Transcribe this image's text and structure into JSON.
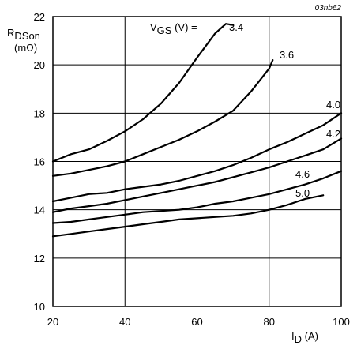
{
  "chart_data": {
    "type": "line",
    "ref_code": "03nb62",
    "ylabel_main": "R",
    "ylabel_sub": "DSon",
    "ylabel_unit": "(mΩ)",
    "xlabel_main": "I",
    "xlabel_sub": "D",
    "xlabel_unit": " (A)",
    "legend_prefix": "V",
    "legend_prefix_sub": "GS",
    "legend_prefix_rest": " (V) = ",
    "xlim": [
      20,
      100
    ],
    "ylim": [
      10,
      22
    ],
    "xticks": [
      "20",
      "40",
      "60",
      "80",
      "100"
    ],
    "yticks": [
      "10",
      "12",
      "14",
      "16",
      "18",
      "20",
      "22"
    ],
    "series": [
      {
        "name": "3.4",
        "x": [
          20,
          25,
          30,
          35,
          40,
          45,
          50,
          55,
          60,
          62,
          65,
          68,
          70
        ],
        "y": [
          16.0,
          16.3,
          16.5,
          16.85,
          17.25,
          17.75,
          18.4,
          19.25,
          20.3,
          20.7,
          21.3,
          21.7,
          21.65
        ]
      },
      {
        "name": "3.6",
        "x": [
          20,
          25,
          30,
          35,
          40,
          45,
          50,
          55,
          60,
          65,
          70,
          75,
          80,
          81
        ],
        "y": [
          15.4,
          15.5,
          15.65,
          15.8,
          16.0,
          16.3,
          16.6,
          16.9,
          17.25,
          17.65,
          18.1,
          18.9,
          19.85,
          20.2
        ]
      },
      {
        "name": "4.0",
        "x": [
          20,
          25,
          30,
          35,
          40,
          45,
          50,
          55,
          60,
          65,
          70,
          75,
          80,
          85,
          90,
          95,
          100
        ],
        "y": [
          14.35,
          14.5,
          14.65,
          14.7,
          14.85,
          14.95,
          15.05,
          15.2,
          15.4,
          15.6,
          15.85,
          16.15,
          16.5,
          16.8,
          17.15,
          17.5,
          18.0
        ]
      },
      {
        "name": "4.2",
        "x": [
          20,
          25,
          30,
          35,
          40,
          45,
          50,
          55,
          60,
          65,
          70,
          75,
          80,
          85,
          90,
          95,
          100
        ],
        "y": [
          13.9,
          14.05,
          14.15,
          14.25,
          14.4,
          14.55,
          14.7,
          14.85,
          15.0,
          15.15,
          15.35,
          15.55,
          15.75,
          16.0,
          16.25,
          16.5,
          16.95
        ]
      },
      {
        "name": "4.6",
        "x": [
          20,
          25,
          30,
          35,
          40,
          45,
          50,
          55,
          60,
          65,
          70,
          75,
          80,
          85,
          90,
          95,
          100
        ],
        "y": [
          13.45,
          13.5,
          13.6,
          13.7,
          13.8,
          13.9,
          13.95,
          14.0,
          14.1,
          14.25,
          14.35,
          14.5,
          14.65,
          14.85,
          15.05,
          15.3,
          15.6
        ]
      },
      {
        "name": "5.0",
        "x": [
          20,
          25,
          30,
          35,
          40,
          45,
          50,
          55,
          60,
          65,
          70,
          75,
          80,
          85,
          90,
          95
        ],
        "y": [
          12.9,
          13.0,
          13.1,
          13.2,
          13.3,
          13.4,
          13.5,
          13.6,
          13.65,
          13.7,
          13.75,
          13.85,
          14.0,
          14.2,
          14.45,
          14.6
        ]
      }
    ]
  }
}
